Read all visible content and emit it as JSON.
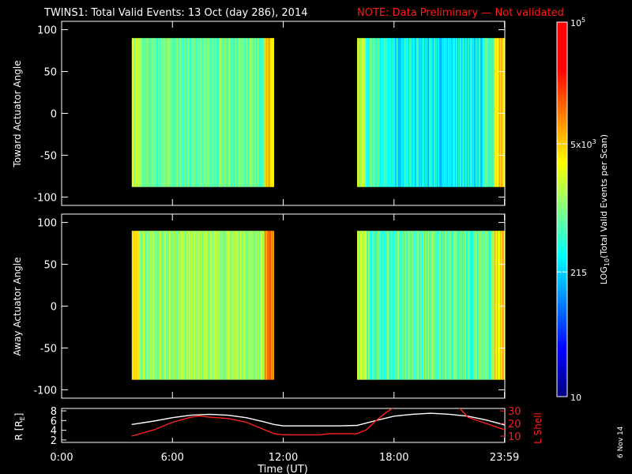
{
  "header": {
    "title": "TWINS1: Total Valid Events: 13 Oct (day 286), 2014",
    "note": "NOTE: Data Preliminary — Not validated"
  },
  "side_stamp": "6 Nov 14",
  "colors": {
    "background": "#000000",
    "axes": "#ffffff",
    "note": "#ff1a1a",
    "l_shell_line": "#ff2020",
    "r_line": "#ffffff"
  },
  "chart_data": [
    {
      "type": "heatmap",
      "name": "toward",
      "ylabel": "Toward Actuator Angle",
      "xlim": [
        0,
        24
      ],
      "ylim": [
        -110,
        110
      ],
      "yticks": [
        100,
        50,
        0,
        -50,
        -100
      ],
      "blocks": [
        {
          "x_range": [
            3.8,
            11.5
          ],
          "y_range": [
            -88,
            90
          ],
          "base_log": 2.9
        },
        {
          "x_range": [
            16.0,
            24.0
          ],
          "y_range": [
            -88,
            90
          ],
          "base_log": 2.75
        }
      ]
    },
    {
      "type": "heatmap",
      "name": "away",
      "ylabel": "Away Actuator Angle",
      "xlim": [
        0,
        24
      ],
      "ylim": [
        -110,
        110
      ],
      "yticks": [
        100,
        50,
        0,
        -50,
        -100
      ],
      "blocks": [
        {
          "x_range": [
            3.8,
            11.5
          ],
          "y_range": [
            -88,
            90
          ],
          "base_log": 3.1
        },
        {
          "x_range": [
            16.0,
            24.0
          ],
          "y_range": [
            -88,
            90
          ],
          "base_log": 2.85
        }
      ]
    },
    {
      "type": "line",
      "name": "orbit",
      "ylabel_left": "R [R",
      "ylabel_left_sub": "E",
      "ylabel_left_end": "]",
      "ylabel_right": "L Shell",
      "xlabel": "Time (UT)",
      "xlim": [
        0,
        24
      ],
      "xticks": [
        {
          "value": 0,
          "label": "0:00"
        },
        {
          "value": 6,
          "label": "6:00"
        },
        {
          "value": 12,
          "label": "12:00"
        },
        {
          "value": 18,
          "label": "18:00"
        },
        {
          "value": 23.98,
          "label": "23:59"
        }
      ],
      "ylim_left": [
        1.5,
        8.5
      ],
      "yticks_left": [
        8,
        6,
        4,
        2
      ],
      "ylim_right": [
        5,
        32
      ],
      "yticks_right": [
        30,
        20,
        10
      ],
      "yticks_right_text": [
        "30",
        "20",
        "10"
      ],
      "series": [
        {
          "axis": "left",
          "x": [
            3.8,
            5,
            6,
            7,
            8,
            9,
            10,
            11,
            11.5,
            12,
            13,
            14,
            15,
            16,
            17,
            18,
            19,
            20,
            21,
            22,
            23,
            24
          ],
          "values": [
            5.2,
            5.9,
            6.6,
            7.1,
            7.3,
            7.1,
            6.6,
            5.7,
            5.2,
            4.9,
            4.9,
            4.9,
            4.9,
            5.0,
            6.0,
            6.9,
            7.3,
            7.5,
            7.3,
            6.9,
            6.1,
            5.1
          ]
        },
        {
          "axis": "right",
          "x": [
            3.8,
            5,
            6,
            7,
            7.5,
            8,
            9,
            10,
            11,
            11.5,
            12,
            13,
            14,
            14.5,
            15,
            16,
            16.5,
            17,
            17.5,
            18,
            21.5,
            22,
            23,
            24
          ],
          "values": [
            10,
            15,
            21,
            25,
            26,
            25,
            24,
            21,
            15,
            12,
            11,
            11,
            11,
            12,
            12,
            12,
            15,
            22,
            28,
            33,
            33,
            25,
            20,
            15
          ]
        }
      ]
    }
  ],
  "colorbar": {
    "log_min": 1,
    "log_max": 5,
    "ylabel": "LOG10(Total Valid Events per Scan)",
    "ylabel_prefix": "LOG",
    "ylabel_sub": "10",
    "ylabel_suffix": "(Total Valid Events per Scan)",
    "ticks": [
      {
        "value": 5,
        "base": "10",
        "exp": "5"
      },
      {
        "value": 3.699,
        "base": "5x10",
        "exp": "3"
      },
      {
        "value": 2.332,
        "base": "215",
        "exp": ""
      },
      {
        "value": 1,
        "base": "10",
        "exp": ""
      }
    ]
  }
}
